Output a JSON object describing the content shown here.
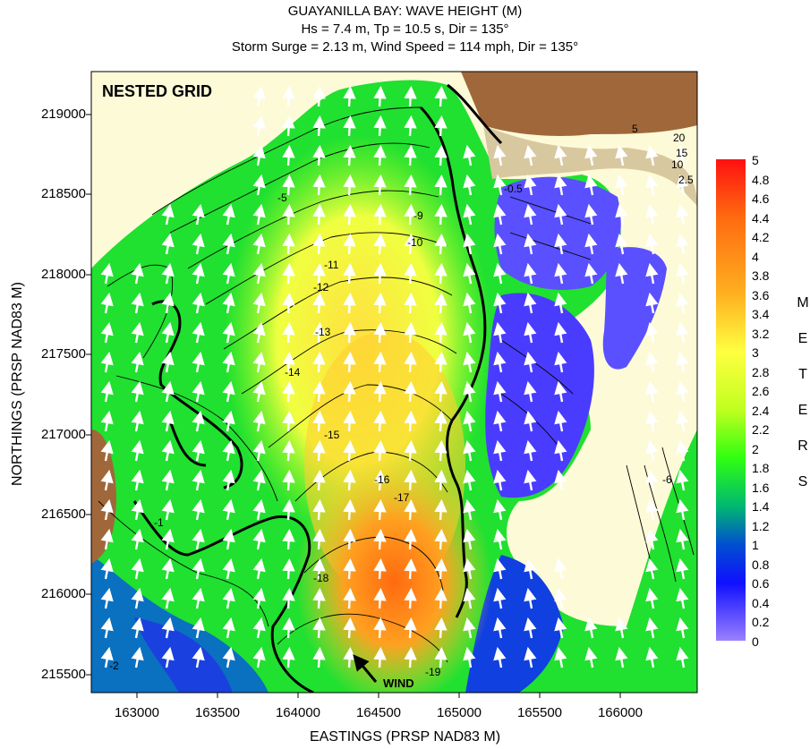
{
  "title": {
    "line1": "GUAYANILLA BAY: WAVE HEIGHT (M)",
    "line2": "Hs = 7.4 m, Tp = 10.5 s, Dir = 135°",
    "line3": "Storm Surge = 2.13 m, Wind Speed = 114 mph, Dir = 135°"
  },
  "axes": {
    "xlabel": "EASTINGS (PRSP NAD83 M)",
    "ylabel": "NORTHINGS (PRSP NAD83 M)",
    "xticks": [
      "163000",
      "163500",
      "164000",
      "164500",
      "165000",
      "165500",
      "166000"
    ],
    "yticks": [
      "219000",
      "218500",
      "218000",
      "217500",
      "217000",
      "216500",
      "216000",
      "215500"
    ]
  },
  "map": {
    "inset_label": "NESTED GRID",
    "wind_label": "WIND",
    "contour_labels": [
      "-9",
      "-10",
      "-11",
      "-12",
      "-13",
      "-14",
      "-15",
      "-16",
      "-17",
      "-18",
      "-19",
      "-2",
      "-5",
      "-1",
      "-6",
      "20",
      "15",
      "10",
      "2.5",
      "5",
      "-0.5"
    ]
  },
  "colorbar": {
    "labels": [
      "5",
      "4.8",
      "4.6",
      "4.4",
      "4.2",
      "4",
      "3.8",
      "3.6",
      "3.4",
      "3.2",
      "3",
      "2.8",
      "2.6",
      "2.4",
      "2.2",
      "2",
      "1.8",
      "1.6",
      "1.4",
      "1.2",
      "1",
      "0.8",
      "0.6",
      "0.4",
      "0.2",
      "0"
    ],
    "units_letters": [
      "M",
      "E",
      "T",
      "E",
      "R",
      "S"
    ],
    "colors": [
      "#ff1010",
      "#ff5a10",
      "#ff9a20",
      "#ffd030",
      "#ffff40",
      "#c8ff20",
      "#30ff10",
      "#00c060",
      "#0060c0",
      "#1010ff",
      "#8a70ff"
    ]
  },
  "colors": {
    "land": "#fdfad8",
    "upland": "#a0683a",
    "contour": "#000000",
    "arrow": "#ffffff"
  }
}
